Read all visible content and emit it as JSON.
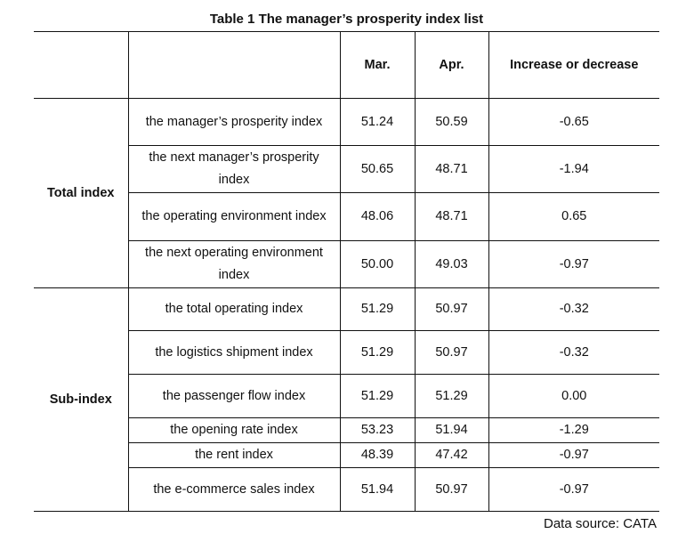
{
  "title": "Table 1 The manager’s prosperity index list",
  "columns": {
    "blank1": "",
    "blank2": "",
    "mar": "Mar.",
    "apr": "Apr.",
    "change": "Increase or decrease"
  },
  "groups": {
    "total": "Total index",
    "sub": "Sub-index"
  },
  "rows": [
    {
      "name": "the manager’s prosperity index",
      "mar": "51.24",
      "apr": "50.59",
      "change": "-0.65"
    },
    {
      "name": "the next manager’s prosperity index",
      "mar": "50.65",
      "apr": "48.71",
      "change": "-1.94"
    },
    {
      "name": "the operating environment index",
      "mar": "48.06",
      "apr": "48.71",
      "change": "0.65"
    },
    {
      "name": "the next operating environment index",
      "mar": "50.00",
      "apr": "49.03",
      "change": "-0.97"
    },
    {
      "name": "the total operating index",
      "mar": "51.29",
      "apr": "50.97",
      "change": "-0.32"
    },
    {
      "name": "the logistics shipment index",
      "mar": "51.29",
      "apr": "50.97",
      "change": "-0.32"
    },
    {
      "name": "the passenger flow index",
      "mar": "51.29",
      "apr": "51.29",
      "change": "0.00"
    },
    {
      "name": "the opening rate index",
      "mar": "53.23",
      "apr": "51.94",
      "change": "-1.29"
    },
    {
      "name": "the rent index",
      "mar": "48.39",
      "apr": "47.42",
      "change": "-0.97"
    },
    {
      "name": "the e-commerce sales index",
      "mar": "51.94",
      "apr": "50.97",
      "change": "-0.97"
    }
  ],
  "source": "Data source: CATA"
}
